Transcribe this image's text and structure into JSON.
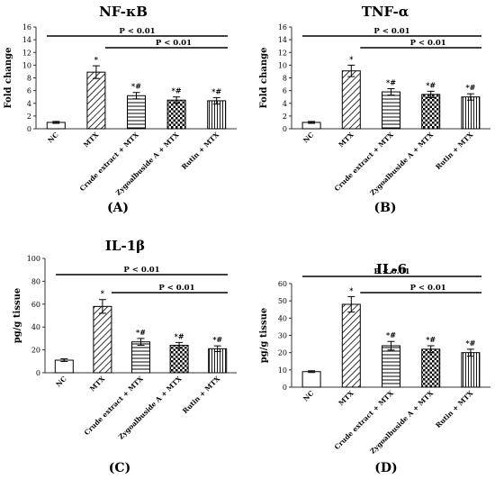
{
  "chart_data": [
    {
      "type": "bar",
      "panel_label": "(A)",
      "title": "NF-κB",
      "ylabel": "Fold change",
      "ylim": [
        0,
        16
      ],
      "yticks": [
        0,
        2,
        4,
        6,
        8,
        10,
        12,
        14,
        16
      ],
      "categories": [
        "NC",
        "MTX",
        "Crude extract + MTX",
        "Zygoalbuside A + MTX",
        "Rutin + MTX"
      ],
      "values": [
        1.0,
        8.9,
        5.2,
        4.5,
        4.4
      ],
      "errors": [
        0.15,
        1.0,
        0.5,
        0.5,
        0.5
      ],
      "annotations": [
        "",
        "*",
        "*#",
        "*#",
        "*#"
      ],
      "patterns": [
        "none",
        "diag",
        "hlines",
        "check",
        "vlines"
      ],
      "significance": [
        {
          "label": "P < 0.01",
          "from": 0,
          "to": 4
        },
        {
          "label": "P < 0.01",
          "from": 1,
          "to": 4
        }
      ]
    },
    {
      "type": "bar",
      "panel_label": "(B)",
      "title": "TNF-α",
      "ylabel": "Fold change",
      "ylim": [
        0,
        16
      ],
      "yticks": [
        0,
        2,
        4,
        6,
        8,
        10,
        12,
        14,
        16
      ],
      "categories": [
        "NC",
        "MTX",
        "Crude extract + MTX",
        "Zygoalbuside A + MTX",
        "Rutin + MTX"
      ],
      "values": [
        1.0,
        9.1,
        5.8,
        5.4,
        5.0
      ],
      "errors": [
        0.15,
        0.9,
        0.5,
        0.5,
        0.5
      ],
      "annotations": [
        "",
        "*",
        "*#",
        "*#",
        "*#"
      ],
      "patterns": [
        "none",
        "diag",
        "hlines",
        "check",
        "vlines"
      ],
      "significance": [
        {
          "label": "P < 0.01",
          "from": 0,
          "to": 4
        },
        {
          "label": "P < 0.01",
          "from": 1,
          "to": 4
        }
      ]
    },
    {
      "type": "bar",
      "panel_label": "(C)",
      "title": "IL-1β",
      "ylabel": "pg/g tissue",
      "ylim": [
        0,
        100
      ],
      "yticks": [
        0,
        20,
        40,
        60,
        80,
        100
      ],
      "categories": [
        "NC",
        "MTX",
        "Crude extract + MTX",
        "Zygoalbuside A + MTX",
        "Rutin + MTX"
      ],
      "values": [
        11,
        58,
        27,
        24,
        21
      ],
      "errors": [
        1.2,
        6,
        3,
        2.5,
        2.5
      ],
      "annotations": [
        "",
        "*",
        "*#",
        "*#",
        "*#"
      ],
      "patterns": [
        "none",
        "diag",
        "hlines",
        "check",
        "vlines"
      ],
      "significance": [
        {
          "label": "P < 0.01",
          "from": 0,
          "to": 4
        },
        {
          "label": "P < 0.01",
          "from": 1,
          "to": 4
        }
      ]
    },
    {
      "type": "bar",
      "panel_label": "(D)",
      "title": "IL-6",
      "ylabel": "pg/g tissue",
      "ylim": [
        0,
        60
      ],
      "yticks": [
        0,
        10,
        20,
        30,
        40,
        50,
        60
      ],
      "categories": [
        "NC",
        "MTX",
        "Crude extract + MTX",
        "Zygoalbuside A + MTX",
        "Rutin + MTX"
      ],
      "values": [
        9,
        48,
        24,
        22,
        20
      ],
      "errors": [
        0.5,
        4.5,
        2.5,
        2,
        2
      ],
      "annotations": [
        "",
        "*",
        "*#",
        "*#",
        "*#"
      ],
      "patterns": [
        "none",
        "diag",
        "hlines",
        "check",
        "vlines"
      ],
      "significance": [
        {
          "label": "P < 0.01",
          "from": 0,
          "to": 4
        },
        {
          "label": "P < 0.01",
          "from": 1,
          "to": 4
        }
      ]
    }
  ]
}
